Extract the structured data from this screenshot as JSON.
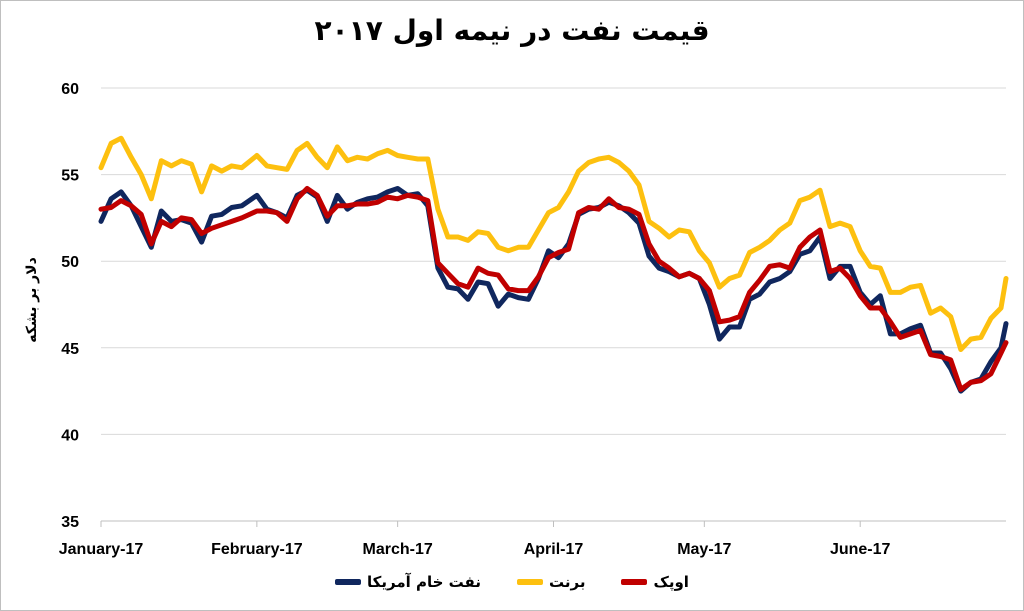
{
  "chart_data": {
    "type": "line",
    "title": "قیمت نفت در نیمه اول ۲۰۱۷",
    "xlabel": "",
    "ylabel": "دلار بر بشکه",
    "ylim": [
      35,
      60
    ],
    "yticks": [
      35,
      40,
      45,
      50,
      55,
      60
    ],
    "x_tick_labels": [
      "January-17",
      "February-17",
      "March-17",
      "April-17",
      "May-17",
      "June-17"
    ],
    "x_tick_dates": [
      "2017-01-01",
      "2017-02-01",
      "2017-03-01",
      "2017-04-01",
      "2017-05-01",
      "2017-06-01"
    ],
    "grid": true,
    "legend_position": "bottom",
    "series": [
      {
        "name": "نفت خام آمریکا",
        "color": "#10275e",
        "points": [
          [
            "2017-01-01",
            52.3
          ],
          [
            "2017-01-03",
            53.6
          ],
          [
            "2017-01-05",
            54.0
          ],
          [
            "2017-01-07",
            53.2
          ],
          [
            "2017-01-09",
            52.0
          ],
          [
            "2017-01-11",
            50.8
          ],
          [
            "2017-01-13",
            52.9
          ],
          [
            "2017-01-15",
            52.3
          ],
          [
            "2017-01-17",
            52.4
          ],
          [
            "2017-01-19",
            52.2
          ],
          [
            "2017-01-21",
            51.1
          ],
          [
            "2017-01-23",
            52.6
          ],
          [
            "2017-01-25",
            52.7
          ],
          [
            "2017-01-27",
            53.1
          ],
          [
            "2017-01-29",
            53.2
          ],
          [
            "2017-02-01",
            53.8
          ],
          [
            "2017-02-03",
            53.0
          ],
          [
            "2017-02-05",
            52.8
          ],
          [
            "2017-02-07",
            52.5
          ],
          [
            "2017-02-09",
            53.8
          ],
          [
            "2017-02-11",
            54.1
          ],
          [
            "2017-02-13",
            53.7
          ],
          [
            "2017-02-15",
            52.3
          ],
          [
            "2017-02-17",
            53.8
          ],
          [
            "2017-02-19",
            53.0
          ],
          [
            "2017-02-21",
            53.4
          ],
          [
            "2017-02-23",
            53.6
          ],
          [
            "2017-02-25",
            53.7
          ],
          [
            "2017-02-27",
            54.0
          ],
          [
            "2017-03-01",
            54.2
          ],
          [
            "2017-03-03",
            53.8
          ],
          [
            "2017-03-05",
            53.9
          ],
          [
            "2017-03-07",
            53.2
          ],
          [
            "2017-03-09",
            49.6
          ],
          [
            "2017-03-11",
            48.5
          ],
          [
            "2017-03-13",
            48.4
          ],
          [
            "2017-03-15",
            47.8
          ],
          [
            "2017-03-17",
            48.8
          ],
          [
            "2017-03-19",
            48.7
          ],
          [
            "2017-03-21",
            47.4
          ],
          [
            "2017-03-23",
            48.1
          ],
          [
            "2017-03-25",
            47.9
          ],
          [
            "2017-03-27",
            47.8
          ],
          [
            "2017-03-29",
            49.0
          ],
          [
            "2017-03-31",
            50.6
          ],
          [
            "2017-04-02",
            50.2
          ],
          [
            "2017-04-04",
            51.0
          ],
          [
            "2017-04-06",
            52.7
          ],
          [
            "2017-04-08",
            53.0
          ],
          [
            "2017-04-10",
            53.1
          ],
          [
            "2017-04-12",
            53.4
          ],
          [
            "2017-04-14",
            53.2
          ],
          [
            "2017-04-16",
            52.8
          ],
          [
            "2017-04-18",
            52.2
          ],
          [
            "2017-04-20",
            50.3
          ],
          [
            "2017-04-22",
            49.6
          ],
          [
            "2017-04-24",
            49.4
          ],
          [
            "2017-04-26",
            49.1
          ],
          [
            "2017-04-28",
            49.3
          ],
          [
            "2017-04-30",
            49.0
          ],
          [
            "2017-05-02",
            47.5
          ],
          [
            "2017-05-04",
            45.5
          ],
          [
            "2017-05-06",
            46.2
          ],
          [
            "2017-05-08",
            46.2
          ],
          [
            "2017-05-10",
            47.8
          ],
          [
            "2017-05-12",
            48.1
          ],
          [
            "2017-05-14",
            48.8
          ],
          [
            "2017-05-16",
            49.0
          ],
          [
            "2017-05-18",
            49.4
          ],
          [
            "2017-05-20",
            50.4
          ],
          [
            "2017-05-22",
            50.6
          ],
          [
            "2017-05-24",
            51.4
          ],
          [
            "2017-05-26",
            49.0
          ],
          [
            "2017-05-28",
            49.7
          ],
          [
            "2017-05-30",
            49.7
          ],
          [
            "2017-06-01",
            48.2
          ],
          [
            "2017-06-03",
            47.5
          ],
          [
            "2017-06-05",
            48.0
          ],
          [
            "2017-06-07",
            45.8
          ],
          [
            "2017-06-09",
            45.8
          ],
          [
            "2017-06-11",
            46.1
          ],
          [
            "2017-06-13",
            46.3
          ],
          [
            "2017-06-15",
            44.7
          ],
          [
            "2017-06-17",
            44.7
          ],
          [
            "2017-06-19",
            43.8
          ],
          [
            "2017-06-21",
            42.5
          ],
          [
            "2017-06-23",
            43.0
          ],
          [
            "2017-06-25",
            43.2
          ],
          [
            "2017-06-27",
            44.2
          ],
          [
            "2017-06-29",
            45.0
          ],
          [
            "2017-06-30",
            46.4
          ]
        ]
      },
      {
        "name": "برنت",
        "color": "#fdc00f",
        "points": [
          [
            "2017-01-01",
            55.4
          ],
          [
            "2017-01-03",
            56.8
          ],
          [
            "2017-01-05",
            57.1
          ],
          [
            "2017-01-07",
            56.0
          ],
          [
            "2017-01-09",
            55.0
          ],
          [
            "2017-01-11",
            53.6
          ],
          [
            "2017-01-13",
            55.8
          ],
          [
            "2017-01-15",
            55.5
          ],
          [
            "2017-01-17",
            55.8
          ],
          [
            "2017-01-19",
            55.6
          ],
          [
            "2017-01-21",
            54.0
          ],
          [
            "2017-01-23",
            55.5
          ],
          [
            "2017-01-25",
            55.2
          ],
          [
            "2017-01-27",
            55.5
          ],
          [
            "2017-01-29",
            55.4
          ],
          [
            "2017-02-01",
            56.1
          ],
          [
            "2017-02-03",
            55.5
          ],
          [
            "2017-02-05",
            55.4
          ],
          [
            "2017-02-07",
            55.3
          ],
          [
            "2017-02-09",
            56.4
          ],
          [
            "2017-02-11",
            56.8
          ],
          [
            "2017-02-13",
            56.0
          ],
          [
            "2017-02-15",
            55.4
          ],
          [
            "2017-02-17",
            56.6
          ],
          [
            "2017-02-19",
            55.8
          ],
          [
            "2017-02-21",
            56.0
          ],
          [
            "2017-02-23",
            55.9
          ],
          [
            "2017-02-25",
            56.2
          ],
          [
            "2017-02-27",
            56.4
          ],
          [
            "2017-03-01",
            56.1
          ],
          [
            "2017-03-03",
            56.0
          ],
          [
            "2017-03-05",
            55.9
          ],
          [
            "2017-03-07",
            55.9
          ],
          [
            "2017-03-09",
            53.0
          ],
          [
            "2017-03-11",
            51.4
          ],
          [
            "2017-03-13",
            51.4
          ],
          [
            "2017-03-15",
            51.2
          ],
          [
            "2017-03-17",
            51.7
          ],
          [
            "2017-03-19",
            51.6
          ],
          [
            "2017-03-21",
            50.8
          ],
          [
            "2017-03-23",
            50.6
          ],
          [
            "2017-03-25",
            50.8
          ],
          [
            "2017-03-27",
            50.8
          ],
          [
            "2017-03-29",
            51.8
          ],
          [
            "2017-03-31",
            52.8
          ],
          [
            "2017-04-02",
            53.1
          ],
          [
            "2017-04-04",
            54.0
          ],
          [
            "2017-04-06",
            55.2
          ],
          [
            "2017-04-08",
            55.7
          ],
          [
            "2017-04-10",
            55.9
          ],
          [
            "2017-04-12",
            56.0
          ],
          [
            "2017-04-14",
            55.7
          ],
          [
            "2017-04-16",
            55.2
          ],
          [
            "2017-04-18",
            54.4
          ],
          [
            "2017-04-20",
            52.3
          ],
          [
            "2017-04-22",
            51.9
          ],
          [
            "2017-04-24",
            51.4
          ],
          [
            "2017-04-26",
            51.8
          ],
          [
            "2017-04-28",
            51.7
          ],
          [
            "2017-04-30",
            50.6
          ],
          [
            "2017-05-02",
            49.9
          ],
          [
            "2017-05-04",
            48.5
          ],
          [
            "2017-05-06",
            49.0
          ],
          [
            "2017-05-08",
            49.2
          ],
          [
            "2017-05-10",
            50.5
          ],
          [
            "2017-05-12",
            50.8
          ],
          [
            "2017-05-14",
            51.2
          ],
          [
            "2017-05-16",
            51.8
          ],
          [
            "2017-05-18",
            52.2
          ],
          [
            "2017-05-20",
            53.5
          ],
          [
            "2017-05-22",
            53.7
          ],
          [
            "2017-05-24",
            54.1
          ],
          [
            "2017-05-26",
            52.0
          ],
          [
            "2017-05-28",
            52.2
          ],
          [
            "2017-05-30",
            52.0
          ],
          [
            "2017-06-01",
            50.6
          ],
          [
            "2017-06-03",
            49.7
          ],
          [
            "2017-06-05",
            49.6
          ],
          [
            "2017-06-07",
            48.2
          ],
          [
            "2017-06-09",
            48.2
          ],
          [
            "2017-06-11",
            48.5
          ],
          [
            "2017-06-13",
            48.6
          ],
          [
            "2017-06-15",
            47.0
          ],
          [
            "2017-06-17",
            47.3
          ],
          [
            "2017-06-19",
            46.8
          ],
          [
            "2017-06-21",
            44.9
          ],
          [
            "2017-06-23",
            45.5
          ],
          [
            "2017-06-25",
            45.6
          ],
          [
            "2017-06-27",
            46.7
          ],
          [
            "2017-06-29",
            47.3
          ],
          [
            "2017-06-30",
            49.0
          ]
        ]
      },
      {
        "name": "اوپک",
        "color": "#c00000",
        "points": [
          [
            "2017-01-01",
            53.0
          ],
          [
            "2017-01-03",
            53.1
          ],
          [
            "2017-01-05",
            53.5
          ],
          [
            "2017-01-07",
            53.2
          ],
          [
            "2017-01-09",
            52.7
          ],
          [
            "2017-01-11",
            51.0
          ],
          [
            "2017-01-13",
            52.3
          ],
          [
            "2017-01-15",
            52.0
          ],
          [
            "2017-01-17",
            52.5
          ],
          [
            "2017-01-19",
            52.4
          ],
          [
            "2017-01-21",
            51.6
          ],
          [
            "2017-01-23",
            51.9
          ],
          [
            "2017-01-25",
            52.1
          ],
          [
            "2017-01-27",
            52.3
          ],
          [
            "2017-01-29",
            52.5
          ],
          [
            "2017-02-01",
            52.9
          ],
          [
            "2017-02-03",
            52.9
          ],
          [
            "2017-02-05",
            52.8
          ],
          [
            "2017-02-07",
            52.3
          ],
          [
            "2017-02-09",
            53.6
          ],
          [
            "2017-02-11",
            54.2
          ],
          [
            "2017-02-13",
            53.8
          ],
          [
            "2017-02-15",
            52.6
          ],
          [
            "2017-02-17",
            53.2
          ],
          [
            "2017-02-19",
            53.2
          ],
          [
            "2017-02-21",
            53.3
          ],
          [
            "2017-02-23",
            53.3
          ],
          [
            "2017-02-25",
            53.4
          ],
          [
            "2017-02-27",
            53.7
          ],
          [
            "2017-03-01",
            53.6
          ],
          [
            "2017-03-03",
            53.8
          ],
          [
            "2017-03-05",
            53.7
          ],
          [
            "2017-03-07",
            53.5
          ],
          [
            "2017-03-09",
            49.9
          ],
          [
            "2017-03-11",
            49.3
          ],
          [
            "2017-03-13",
            48.7
          ],
          [
            "2017-03-15",
            48.5
          ],
          [
            "2017-03-17",
            49.6
          ],
          [
            "2017-03-19",
            49.3
          ],
          [
            "2017-03-21",
            49.2
          ],
          [
            "2017-03-23",
            48.4
          ],
          [
            "2017-03-25",
            48.3
          ],
          [
            "2017-03-27",
            48.3
          ],
          [
            "2017-03-29",
            49.1
          ],
          [
            "2017-03-31",
            50.2
          ],
          [
            "2017-04-02",
            50.5
          ],
          [
            "2017-04-04",
            50.7
          ],
          [
            "2017-04-06",
            52.8
          ],
          [
            "2017-04-08",
            53.1
          ],
          [
            "2017-04-10",
            53.0
          ],
          [
            "2017-04-12",
            53.6
          ],
          [
            "2017-04-14",
            53.1
          ],
          [
            "2017-04-16",
            53.0
          ],
          [
            "2017-04-18",
            52.7
          ],
          [
            "2017-04-20",
            51.0
          ],
          [
            "2017-04-22",
            50.0
          ],
          [
            "2017-04-24",
            49.6
          ],
          [
            "2017-04-26",
            49.1
          ],
          [
            "2017-04-28",
            49.3
          ],
          [
            "2017-04-30",
            49.0
          ],
          [
            "2017-05-02",
            48.3
          ],
          [
            "2017-05-04",
            46.5
          ],
          [
            "2017-05-06",
            46.6
          ],
          [
            "2017-05-08",
            46.8
          ],
          [
            "2017-05-10",
            48.2
          ],
          [
            "2017-05-12",
            48.9
          ],
          [
            "2017-05-14",
            49.7
          ],
          [
            "2017-05-16",
            49.8
          ],
          [
            "2017-05-18",
            49.6
          ],
          [
            "2017-05-20",
            50.8
          ],
          [
            "2017-05-22",
            51.4
          ],
          [
            "2017-05-24",
            51.8
          ],
          [
            "2017-05-26",
            49.4
          ],
          [
            "2017-05-28",
            49.6
          ],
          [
            "2017-05-30",
            49.0
          ],
          [
            "2017-06-01",
            48.0
          ],
          [
            "2017-06-03",
            47.3
          ],
          [
            "2017-06-05",
            47.3
          ],
          [
            "2017-06-07",
            46.5
          ],
          [
            "2017-06-09",
            45.6
          ],
          [
            "2017-06-11",
            45.8
          ],
          [
            "2017-06-13",
            46.0
          ],
          [
            "2017-06-15",
            44.6
          ],
          [
            "2017-06-17",
            44.5
          ],
          [
            "2017-06-19",
            44.3
          ],
          [
            "2017-06-21",
            42.6
          ],
          [
            "2017-06-23",
            43.0
          ],
          [
            "2017-06-25",
            43.1
          ],
          [
            "2017-06-27",
            43.5
          ],
          [
            "2017-06-29",
            44.7
          ],
          [
            "2017-06-30",
            45.3
          ]
        ]
      }
    ]
  }
}
